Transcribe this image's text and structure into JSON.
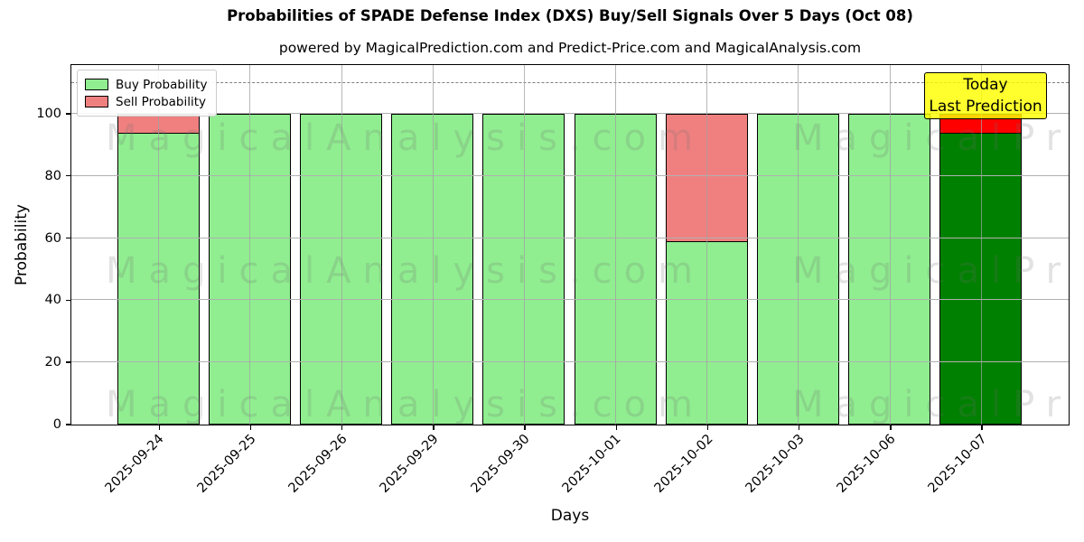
{
  "chart_data": {
    "type": "bar",
    "stacked": true,
    "title": "Probabilities of SPADE Defense Index (DXS) Buy/Sell Signals Over 5 Days (Oct 08)",
    "subtitle": "powered by MagicalPrediction.com and Predict-Price.com and MagicalAnalysis.com",
    "xlabel": "Days",
    "ylabel": "Probability",
    "categories": [
      "2025-09-24",
      "2025-09-25",
      "2025-09-26",
      "2025-09-29",
      "2025-09-30",
      "2025-10-01",
      "2025-10-02",
      "2025-10-03",
      "2025-10-06",
      "2025-10-07"
    ],
    "series": [
      {
        "name": "Buy Probability",
        "color": "#90ee90",
        "today_color": "#008000",
        "values": [
          94,
          100,
          100,
          100,
          100,
          100,
          59,
          100,
          100,
          94
        ]
      },
      {
        "name": "Sell Probability",
        "color": "#f08080",
        "today_color": "#ff0000",
        "values": [
          6,
          0,
          0,
          0,
          0,
          0,
          41,
          0,
          0,
          6
        ]
      }
    ],
    "ylim": [
      0,
      115.4
    ],
    "yticks": [
      0,
      20,
      40,
      60,
      80,
      100
    ],
    "grid": true,
    "dashed_guide_y": 110,
    "today_index": 9,
    "legend": {
      "position": "upper left",
      "items": [
        {
          "label": "Buy Probability",
          "color": "#90ee90"
        },
        {
          "label": "Sell Probability",
          "color": "#f08080"
        }
      ]
    },
    "annotation": {
      "lines": [
        "Today",
        "Last Prediction"
      ],
      "bg": "#ffff00"
    },
    "watermarks": {
      "left_text": "MagicalAnalysis.com",
      "right_text": "MagicalPrediction.com",
      "rows": 3
    }
  }
}
